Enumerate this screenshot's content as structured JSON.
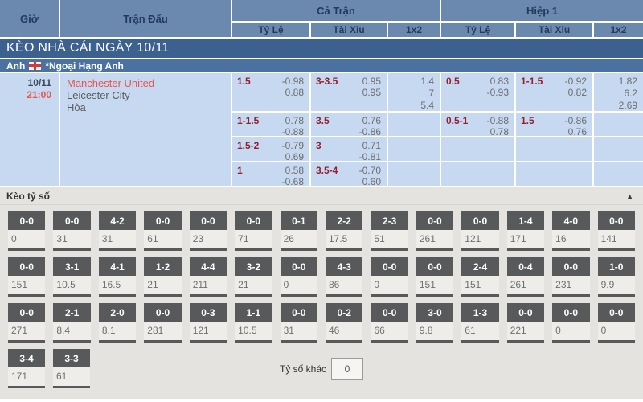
{
  "header": {
    "col_time": "Giờ",
    "col_match": "Trận Đấu",
    "group_full": "Cả Trận",
    "group_half": "Hiệp 1",
    "sub_handicap": "Tỷ Lệ",
    "sub_ou": "Tài Xỉu",
    "sub_1x2": "1x2"
  },
  "banner": {
    "title": "KÈO NHÀ CÁI NGÀY 10/11"
  },
  "league": {
    "country": "Anh",
    "flag": "england-flag",
    "name": "*Ngoại Hạng Anh"
  },
  "match": {
    "date": "10/11",
    "time": "21:00",
    "home": "Manchester United",
    "away": "Leicester City",
    "draw_label": "Hòa"
  },
  "odds_rows": [
    {
      "ft_hc_line": "1.5",
      "ft_hc_o1": "-0.98",
      "ft_hc_o2": "0.88",
      "ft_ou_line": "3-3.5",
      "ft_ou_o1": "0.95",
      "ft_ou_o2": "0.95",
      "ft_1": "1.4",
      "ft_x": "7",
      "ft_2": "5.4",
      "h1_hc_line": "0.5",
      "h1_hc_o1": "0.83",
      "h1_hc_o2": "-0.93",
      "h1_ou_line": "1-1.5",
      "h1_ou_o1": "-0.92",
      "h1_ou_o2": "0.82",
      "h1_1": "1.82",
      "h1_x": "6.2",
      "h1_2": "2.69"
    },
    {
      "ft_hc_line": "1-1.5",
      "ft_hc_o1": "0.78",
      "ft_hc_o2": "-0.88",
      "ft_ou_line": "3.5",
      "ft_ou_o1": "0.76",
      "ft_ou_o2": "-0.86",
      "ft_1": "",
      "ft_x": "",
      "ft_2": "",
      "h1_hc_line": "0.5-1",
      "h1_hc_o1": "-0.88",
      "h1_hc_o2": "0.78",
      "h1_ou_line": "1.5",
      "h1_ou_o1": "-0.86",
      "h1_ou_o2": "0.76",
      "h1_1": "",
      "h1_x": "",
      "h1_2": ""
    },
    {
      "ft_hc_line": "1.5-2",
      "ft_hc_o1": "-0.79",
      "ft_hc_o2": "0.69",
      "ft_ou_line": "3",
      "ft_ou_o1": "0.71",
      "ft_ou_o2": "-0.81",
      "ft_1": "",
      "ft_x": "",
      "ft_2": "",
      "h1_hc_line": "",
      "h1_hc_o1": "",
      "h1_hc_o2": "",
      "h1_ou_line": "",
      "h1_ou_o1": "",
      "h1_ou_o2": "",
      "h1_1": "",
      "h1_x": "",
      "h1_2": ""
    },
    {
      "ft_hc_line": "1",
      "ft_hc_o1": "0.58",
      "ft_hc_o2": "-0.68",
      "ft_ou_line": "3.5-4",
      "ft_ou_o1": "-0.70",
      "ft_ou_o2": "0.60",
      "ft_1": "",
      "ft_x": "",
      "ft_2": "",
      "h1_hc_line": "",
      "h1_hc_o1": "",
      "h1_hc_o2": "",
      "h1_ou_line": "",
      "h1_ou_o1": "",
      "h1_ou_o2": "",
      "h1_1": "",
      "h1_x": "",
      "h1_2": ""
    }
  ],
  "score_section": {
    "title": "Kèo tỷ số",
    "collapse_icon": "▲",
    "rows": [
      [
        {
          "score": "0-0",
          "value": "0"
        },
        {
          "score": "0-0",
          "value": "31"
        },
        {
          "score": "4-2",
          "value": "31"
        },
        {
          "score": "0-0",
          "value": "61"
        },
        {
          "score": "0-0",
          "value": "23"
        },
        {
          "score": "0-0",
          "value": "71"
        },
        {
          "score": "0-1",
          "value": "26"
        },
        {
          "score": "2-2",
          "value": "17.5"
        },
        {
          "score": "2-3",
          "value": "51"
        },
        {
          "score": "0-0",
          "value": "261"
        },
        {
          "score": "0-0",
          "value": "121"
        },
        {
          "score": "1-4",
          "value": "171"
        },
        {
          "score": "4-0",
          "value": "16"
        },
        {
          "score": "0-0",
          "value": "141"
        }
      ],
      [
        {
          "score": "0-0",
          "value": "151"
        },
        {
          "score": "3-1",
          "value": "10.5"
        },
        {
          "score": "4-1",
          "value": "16.5"
        },
        {
          "score": "1-2",
          "value": "21"
        },
        {
          "score": "4-4",
          "value": "211"
        },
        {
          "score": "3-2",
          "value": "21"
        },
        {
          "score": "0-0",
          "value": "0"
        },
        {
          "score": "4-3",
          "value": "86"
        },
        {
          "score": "0-0",
          "value": "0"
        },
        {
          "score": "0-0",
          "value": "151"
        },
        {
          "score": "2-4",
          "value": "151"
        },
        {
          "score": "0-4",
          "value": "261"
        },
        {
          "score": "0-0",
          "value": "231"
        },
        {
          "score": "1-0",
          "value": "9.9"
        }
      ],
      [
        {
          "score": "0-0",
          "value": "271"
        },
        {
          "score": "2-1",
          "value": "8.4"
        },
        {
          "score": "2-0",
          "value": "8.1"
        },
        {
          "score": "0-0",
          "value": "281"
        },
        {
          "score": "0-3",
          "value": "121"
        },
        {
          "score": "1-1",
          "value": "10.5"
        },
        {
          "score": "0-0",
          "value": "31"
        },
        {
          "score": "0-2",
          "value": "46"
        },
        {
          "score": "0-0",
          "value": "66"
        },
        {
          "score": "3-0",
          "value": "9.8"
        },
        {
          "score": "1-3",
          "value": "61"
        },
        {
          "score": "0-0",
          "value": "221"
        },
        {
          "score": "0-0",
          "value": "0"
        },
        {
          "score": "0-0",
          "value": "0"
        }
      ],
      [
        {
          "score": "3-4",
          "value": "171"
        },
        {
          "score": "3-3",
          "value": "61"
        }
      ]
    ],
    "other": {
      "label": "Tỷ số khác",
      "value": "0"
    }
  },
  "colors": {
    "header_bg": "#6b89af",
    "banner_bg": "#3c618f",
    "league_bg": "#4a71a0",
    "row_bg": "#c6d9f1",
    "handicap_line": "#92202e",
    "odds_text": "#6e6e6e",
    "team_red": "#e9554d",
    "score_box": "#58595b",
    "section_bg": "#e4e3e0"
  }
}
